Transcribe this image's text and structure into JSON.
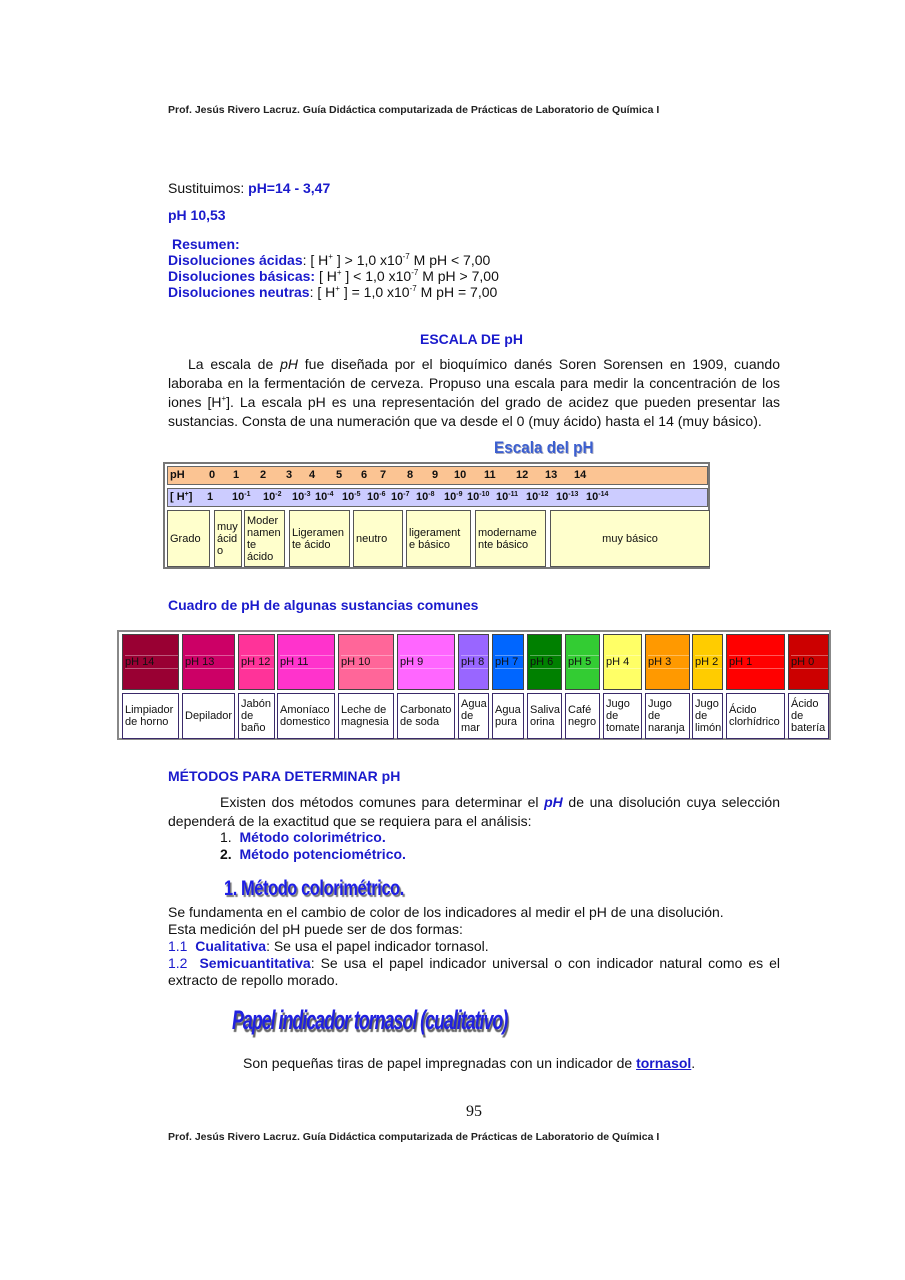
{
  "header": "Prof.  Jesús  Rivero  Lacruz. Guía Didáctica computarizada de Prácticas de Laboratorio de Química I",
  "footer": "Prof.  Jesús  Rivero  Lacruz. Guía Didáctica computarizada de Prácticas de Laboratorio de Química I",
  "page_number": "95",
  "sustituimos": {
    "label": "Sustituimos: ",
    "formula": "pH=14 - 3,47"
  },
  "result": "pH 10,53",
  "resumen": {
    "title": "Resumen:",
    "lines": [
      {
        "label": "Disoluciones ácidas",
        "sep": ": ",
        "pre": "[ H",
        "sup": "+",
        "mid": " ] > 1,0 x10",
        "exp": "-7",
        "post": " M  pH < 7,00"
      },
      {
        "label": "Disoluciones básicas:",
        "sep": " ",
        "pre": "[ H",
        "sup": "+",
        "mid": " ] < 1,0 x10",
        "exp": "-7",
        "post": " M  pH > 7,00"
      },
      {
        "label": "Disoluciones neutras",
        "sep": ": ",
        "pre": "[ H",
        "sup": "+",
        "mid": " ] = 1,0 x10",
        "exp": "-7",
        "post": " M  pH = 7,00"
      }
    ]
  },
  "escala_title": "ESCALA DE pH",
  "escala_paragraph": {
    "p1": "La escala de ",
    "p1i": "pH",
    "p2": " fue diseñada por el bioquímico danés Soren Sorensen en 1909, cuando laboraba en la fermentación de cerveza. Propuso una escala para medir la concentración de los iones [H",
    "p2sup": "+",
    "p3": "]. La escala  pH es una representación  del grado de acidez que pueden presentar las sustancias. Consta de una numeración que va desde el 0 (muy ácido) hasta el 14 (muy básico)."
  },
  "scale_image": {
    "title": "Escala del pH",
    "ph_row": [
      "pH",
      "0",
      "1",
      "2",
      "3",
      "4",
      "5",
      "6",
      "7",
      "8",
      "9",
      "10",
      "11",
      "12",
      "13",
      "14"
    ],
    "h_row_label": "[ H",
    "h_row_label_sup": "+",
    "h_row_label_end": "]",
    "h_row": [
      {
        "base": "1",
        "exp": ""
      },
      {
        "base": "10",
        "exp": "-1"
      },
      {
        "base": "10",
        "exp": "-2"
      },
      {
        "base": "10",
        "exp": "-3"
      },
      {
        "base": "10",
        "exp": "-4"
      },
      {
        "base": "10",
        "exp": "-5"
      },
      {
        "base": "10",
        "exp": "-6"
      },
      {
        "base": "10",
        "exp": "-7"
      },
      {
        "base": "10",
        "exp": "-8"
      },
      {
        "base": "10",
        "exp": "-9"
      },
      {
        "base": "10",
        "exp": "-10"
      },
      {
        "base": "10",
        "exp": "-11"
      },
      {
        "base": "10",
        "exp": "-12"
      },
      {
        "base": "10",
        "exp": "-13"
      },
      {
        "base": "10",
        "exp": "-14"
      }
    ],
    "grado": [
      "Grado",
      "muy ácid o",
      "Moder namen te ácido",
      "Ligeramen te  ácido",
      "neutro",
      "ligerament e  básico",
      "modername nte básico",
      "muy básico"
    ]
  },
  "cuadro_title": "Cuadro de  pH de algunas sustancias comunes",
  "substances": [
    {
      "ph": "pH 14",
      "name": "Limpiador de horno",
      "color": "#990033"
    },
    {
      "ph": "pH 13",
      "name": "Depilador",
      "color": "#cc0066"
    },
    {
      "ph": "pH 12",
      "name": "Jabón de baño",
      "color": "#ff3399"
    },
    {
      "ph": "pH 11",
      "name": "Amoníaco domestico",
      "color": "#ff33cc"
    },
    {
      "ph": "pH 10",
      "name": "Leche de magnesia",
      "color": "#ff6699"
    },
    {
      "ph": "pH 9",
      "name": "Carbonato de soda",
      "color": "#ff66ff"
    },
    {
      "ph": "pH 8",
      "name": "Agua de mar",
      "color": "#9966ff"
    },
    {
      "ph": "pH 7",
      "name": "Agua pura",
      "color": "#0066ff"
    },
    {
      "ph": "pH 6",
      "name": "Saliva orina",
      "color": "#008000"
    },
    {
      "ph": "pH 5",
      "name": "Café negro",
      "color": "#33cc33"
    },
    {
      "ph": "pH 4",
      "name": "Jugo de tomate",
      "color": "#ffff66"
    },
    {
      "ph": "pH 3",
      "name": "Jugo de naranja",
      "color": "#ff9900"
    },
    {
      "ph": "pH 2",
      "name": "Jugo de limón",
      "color": "#ffcc00"
    },
    {
      "ph": "pH 1",
      "name": "Ácido clorhídrico",
      "color": "#ff0000"
    },
    {
      "ph": "pH 0",
      "name": "Ácido de batería",
      "color": "#cc0000"
    }
  ],
  "metodos": {
    "title": "MÉTODOS PARA DETERMINAR pH",
    "intro1": "Existen dos métodos comunes para determinar el ",
    "intro_ph": "pH",
    "intro2": " de una disolución cuya selección dependerá de la exactitud que se requiera para el análisis:",
    "items": [
      {
        "num": "1.",
        "label": "Método colorimétrico."
      },
      {
        "num": "2.",
        "label": "Método potenciométrico."
      }
    ]
  },
  "colorimetrico": {
    "title": "1. Método colorimétrico.",
    "line1": "Se fundamenta en el cambio de color de los indicadores al medir el pH de una disolución.",
    "line2": "Esta medición del pH puede ser  de dos formas:",
    "sub": [
      {
        "num": "1.1",
        "label": "Cualitativa",
        "text": ": Se usa el papel indicador tornasol."
      },
      {
        "num": "1.2",
        "label": "Semicuantitativa",
        "text": ": Se usa el papel indicador universal o con indicador natural como es el extracto de  repollo morado."
      }
    ]
  },
  "tornasol": {
    "title": "Papel indicador tornasol (cualitativo)",
    "text": "Son pequeñas tiras de papel impregnadas con un indicador de ",
    "link": "tornasol",
    "end": "."
  },
  "colors": {
    "text_blue": "#1a1acc",
    "ph_row_bg": "#fbc493",
    "h_row_bg": "#ccccff",
    "grado_bg": "#ffffcc"
  }
}
